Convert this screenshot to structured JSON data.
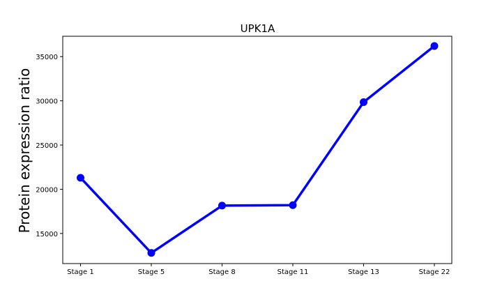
{
  "chart_data": {
    "type": "line",
    "title": "UPK1A",
    "xlabel": "",
    "ylabel": "Protein expression ratio",
    "categories": [
      "Stage 1",
      "Stage 5",
      "Stage 8",
      "Stage 11",
      "Stage 13",
      "Stage 22"
    ],
    "series": [
      {
        "values": [
          21300,
          12800,
          18150,
          18200,
          29850,
          36200
        ],
        "color": "#0000ff",
        "marker": "circle"
      }
    ],
    "ylim": [
      11600,
      37300
    ],
    "y_ticks": [
      15000,
      20000,
      25000,
      30000,
      35000
    ],
    "grid": false,
    "legend": "none"
  }
}
